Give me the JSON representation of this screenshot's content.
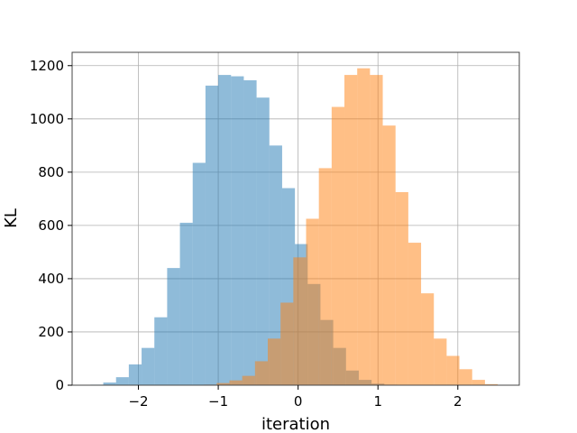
{
  "chart_data": {
    "type": "histogram",
    "title": "",
    "xlabel": "iteration",
    "ylabel": "KL",
    "xlim": [
      -2.83,
      2.77
    ],
    "ylim": [
      0,
      1250
    ],
    "xticks": [
      -2,
      -1,
      0,
      1,
      2
    ],
    "xtick_labels": [
      "−2",
      "−1",
      "0",
      "1",
      "2"
    ],
    "yticks": [
      0,
      200,
      400,
      600,
      800,
      1000,
      1200
    ],
    "ytick_labels": [
      "0",
      "200",
      "400",
      "600",
      "800",
      "1000",
      "1200"
    ],
    "grid": true,
    "legend": "none",
    "series": [
      {
        "color": "#1f77b4",
        "alpha": 0.5,
        "bin_start": -2.6,
        "bin_width": 0.16,
        "values": [
          2,
          10,
          30,
          78,
          140,
          255,
          440,
          610,
          835,
          1125,
          1165,
          1160,
          1145,
          1080,
          900,
          740,
          530,
          380,
          245,
          140,
          55,
          20,
          6,
          2
        ]
      },
      {
        "color": "#ff7f0e",
        "alpha": 0.5,
        "bin_start": -1.18,
        "bin_width": 0.16,
        "values": [
          2,
          8,
          18,
          35,
          90,
          175,
          310,
          480,
          625,
          815,
          1045,
          1165,
          1190,
          1165,
          975,
          725,
          535,
          345,
          175,
          110,
          60,
          20,
          4
        ]
      }
    ]
  }
}
